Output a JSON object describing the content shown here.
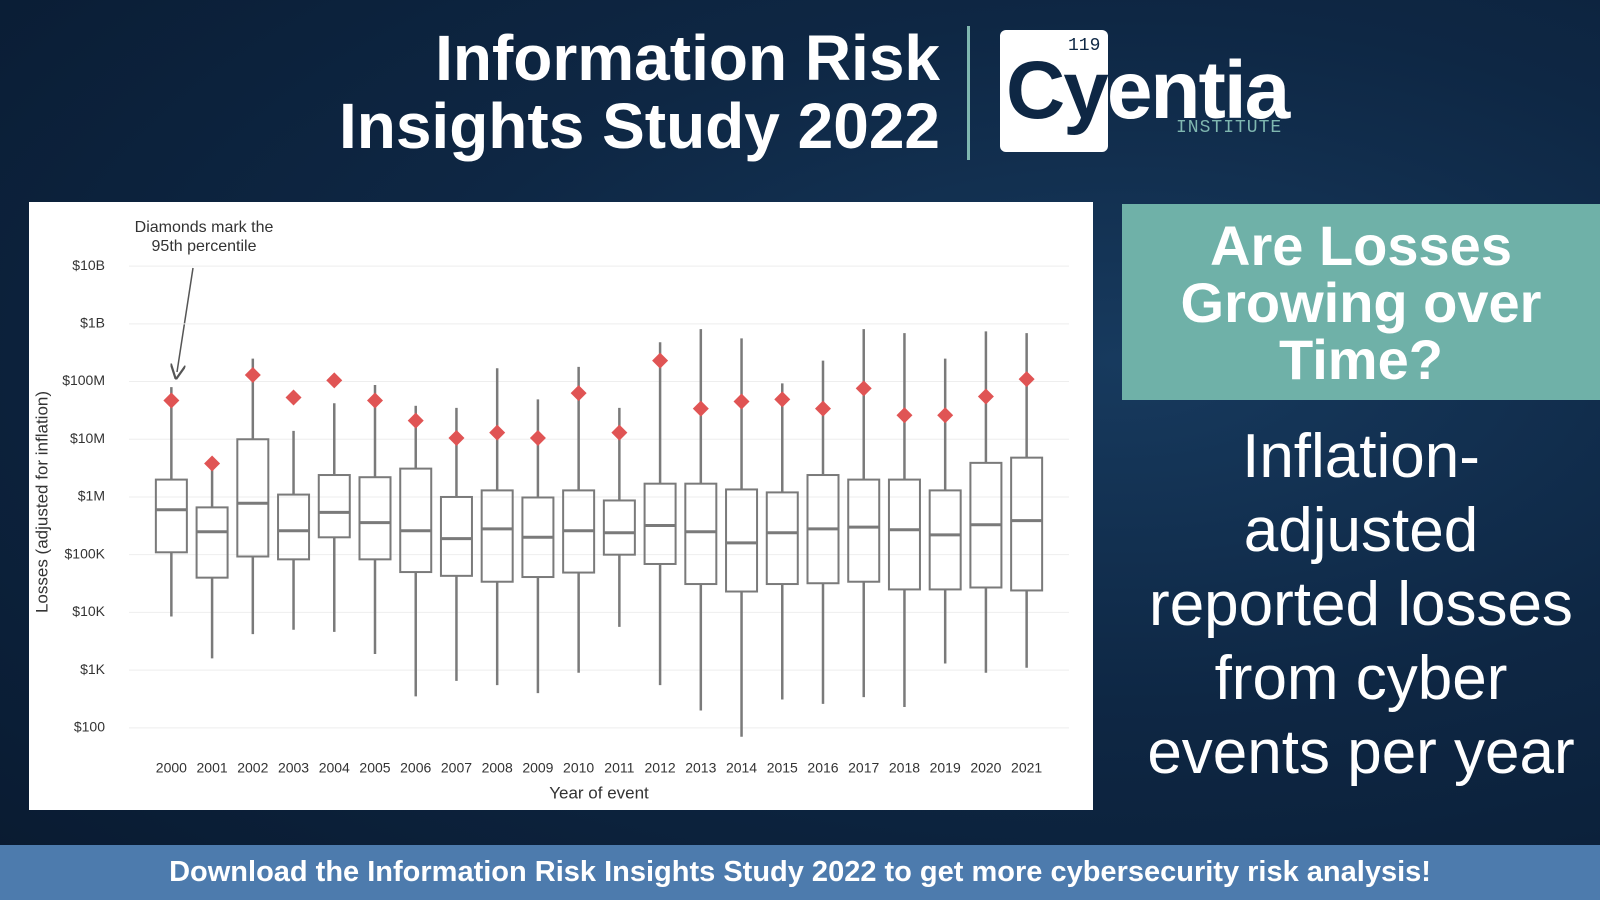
{
  "header": {
    "title_lines": [
      "Information Risk",
      "Insights Study 2022"
    ],
    "logo": {
      "number": "119",
      "name_start": "Cy",
      "name_end": "entia",
      "subtitle": "INSTITUTE"
    }
  },
  "chart_data": {
    "type": "box",
    "x_label": "Year of event",
    "y_label": "Losses (adjusted for inflation)",
    "annotation_lines": [
      "Diamonds mark the",
      "95th percentile"
    ],
    "log_scale": true,
    "grid": true,
    "box_color": "#7a7a7a",
    "marker_color": "#e05454",
    "categories": [
      "2000",
      "2001",
      "2002",
      "2003",
      "2004",
      "2005",
      "2006",
      "2007",
      "2008",
      "2009",
      "2010",
      "2011",
      "2012",
      "2013",
      "2014",
      "2015",
      "2016",
      "2017",
      "2018",
      "2019",
      "2020",
      "2021"
    ],
    "whisker_low": [
      8500,
      1600,
      4200,
      5000,
      4600,
      1900,
      350,
      650,
      550,
      400,
      900,
      5600,
      550,
      200,
      70,
      310,
      260,
      340,
      230,
      1300,
      900,
      1100
    ],
    "q1": [
      110000,
      40000,
      93000,
      83000,
      200000,
      83000,
      50000,
      43000,
      34000,
      41000,
      49000,
      100000,
      69000,
      31000,
      23000,
      31000,
      32000,
      34000,
      25000,
      25000,
      27000,
      24000
    ],
    "median": [
      600000,
      250000,
      780000,
      260000,
      540000,
      360000,
      260000,
      190000,
      280000,
      200000,
      260000,
      240000,
      320000,
      250000,
      160000,
      240000,
      280000,
      300000,
      270000,
      220000,
      330000,
      390000
    ],
    "q3": [
      2000000,
      660000,
      10000000,
      1100000,
      2400000,
      2200000,
      3100000,
      1000000,
      1300000,
      980000,
      1300000,
      870000,
      1700000,
      1700000,
      1350000,
      1200000,
      2400000,
      2000000,
      2000000,
      1300000,
      3900000,
      4800000
    ],
    "whisker_high": [
      80000000,
      3800000,
      250000000,
      14000000,
      42000000,
      87000000,
      38000000,
      35000000,
      170000000,
      49000000,
      180000000,
      35000000,
      480000000,
      810000000,
      560000000,
      93000000,
      230000000,
      810000000,
      690000000,
      250000000,
      740000000,
      690000000
    ],
    "p95": [
      47000000,
      3800000,
      130000000,
      53000000,
      105000000,
      47000000,
      21000000,
      10500000,
      13000000,
      10500000,
      63000000,
      13000000,
      230000000,
      34000000,
      45000000,
      49000000,
      34000000,
      76000000,
      26000000,
      26000000,
      55000000,
      110000000
    ],
    "ylim": [
      30,
      80000000000
    ],
    "yticks": [
      {
        "value": 100,
        "label": "$100"
      },
      {
        "value": 1000,
        "label": "$1K"
      },
      {
        "value": 10000,
        "label": "$10K"
      },
      {
        "value": 100000,
        "label": "$100K"
      },
      {
        "value": 1000000,
        "label": "$1M"
      },
      {
        "value": 10000000,
        "label": "$10M"
      },
      {
        "value": 100000000,
        "label": "$100M"
      },
      {
        "value": 1000000000,
        "label": "$1B"
      },
      {
        "value": 10000000000,
        "label": "$10B"
      }
    ]
  },
  "sidebar": {
    "question": "Are Losses Growing over Time?",
    "description": "Inflation-adjusted reported losses from cyber events per year"
  },
  "footer": {
    "text": "Download the Information Risk Insights Study 2022 to get more cybersecurity risk analysis!"
  }
}
